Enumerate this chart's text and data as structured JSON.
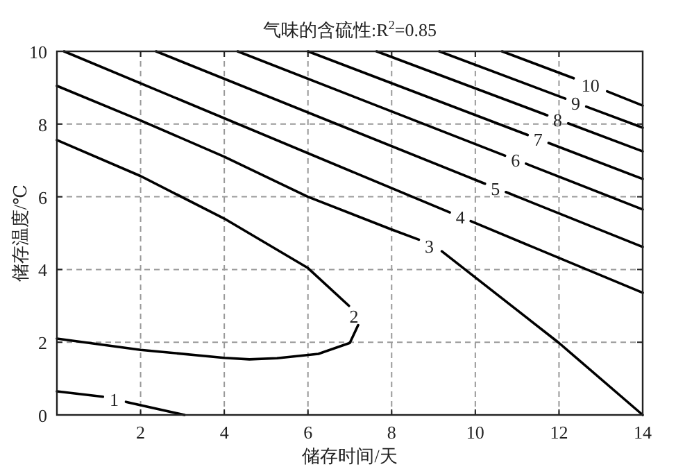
{
  "chart_data": {
    "type": "line",
    "title": "气味的含硫性:R$^{2}$=0.85",
    "xlabel": "储存时间/天",
    "ylabel": "储存温度/℃",
    "xlim": [
      0,
      14
    ],
    "ylim": [
      0,
      10
    ],
    "xticks": [
      2,
      4,
      6,
      8,
      10,
      12,
      14
    ],
    "yticks": [
      0,
      2,
      4,
      6,
      8,
      10
    ],
    "grid": true,
    "marker": "none",
    "line_style": "solid",
    "series": [
      {
        "name": "1",
        "color": "#000000",
        "x": [
          0,
          1.1,
          1.37,
          1.65,
          3.05
        ],
        "values": [
          0.65,
          0.5,
          null,
          0.36,
          0
        ]
      },
      {
        "name": "2",
        "color": "#000000",
        "x": [
          0,
          2,
          4,
          6,
          6.98,
          7.1,
          7.2,
          7.0,
          6.25,
          5.26,
          4.6,
          4,
          2,
          0
        ],
        "values": [
          7.56,
          6.57,
          5.4,
          4.04,
          3.0,
          null,
          2.47,
          1.98,
          1.68,
          1.56,
          1.53,
          1.57,
          1.79,
          2.1
        ]
      },
      {
        "name": "3",
        "color": "#000000",
        "x": [
          0,
          2,
          4,
          6,
          8,
          8.65,
          8.9,
          9.2,
          10,
          12,
          14
        ],
        "values": [
          9.05,
          8.1,
          7.1,
          6.0,
          5.1,
          4.82,
          null,
          4.5,
          3.78,
          1.98,
          0
        ]
      },
      {
        "name": "4",
        "color": "#000000",
        "x": [
          0.17,
          9.39,
          9.64,
          9.89,
          14
        ],
        "values": [
          10,
          5.57,
          null,
          5.33,
          3.36
        ]
      },
      {
        "name": "5",
        "color": "#000000",
        "x": [
          2.37,
          10.23,
          10.48,
          10.73,
          14
        ],
        "values": [
          10,
          6.36,
          null,
          6.13,
          4.62
        ]
      },
      {
        "name": "6",
        "color": "#000000",
        "x": [
          4.32,
          10.71,
          10.96,
          11.21,
          14
        ],
        "values": [
          10,
          7.13,
          null,
          6.91,
          5.65
        ]
      },
      {
        "name": "7",
        "color": "#000000",
        "x": [
          6.0,
          11.25,
          11.5,
          11.75,
          14
        ],
        "values": [
          10,
          7.7,
          null,
          7.48,
          6.49
        ]
      },
      {
        "name": "8",
        "color": "#000000",
        "x": [
          7.64,
          11.72,
          11.97,
          12.22,
          14
        ],
        "values": [
          10,
          8.24,
          null,
          8.02,
          7.25
        ]
      },
      {
        "name": "9",
        "color": "#000000",
        "x": [
          9.14,
          12.15,
          12.4,
          12.65,
          14
        ],
        "values": [
          10,
          8.7,
          null,
          8.48,
          7.9
        ]
      },
      {
        "name": "10",
        "color": "#000000",
        "x": [
          10.64,
          12.35,
          12.75,
          13.15,
          14
        ],
        "values": [
          10,
          9.26,
          null,
          8.9,
          8.51
        ]
      }
    ]
  }
}
